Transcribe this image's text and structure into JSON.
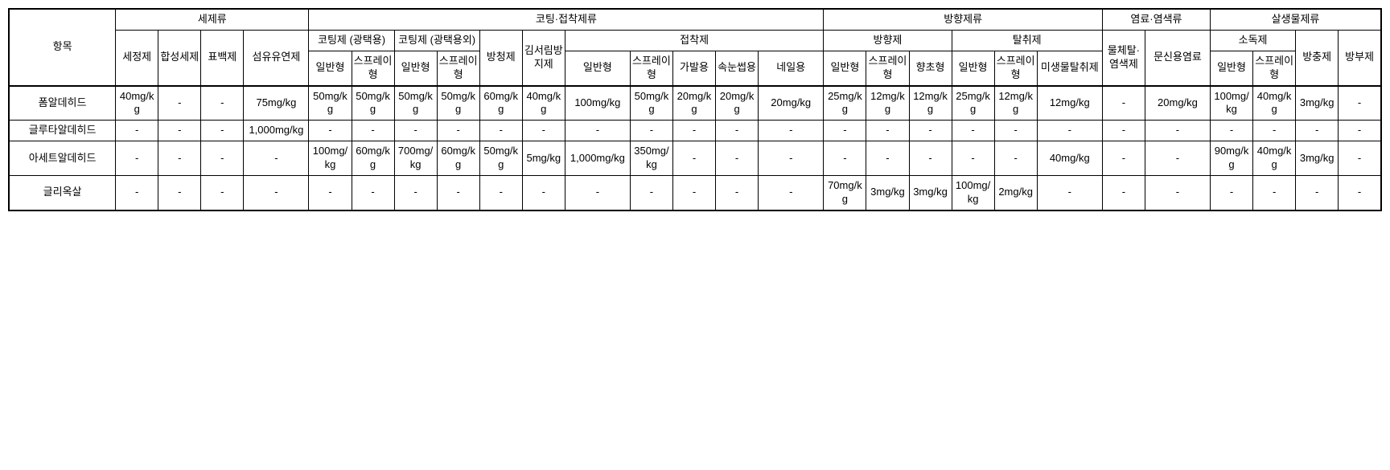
{
  "headers": {
    "item": "항목",
    "g1": "세제류",
    "g2": "코팅·접착제류",
    "g3": "방향제류",
    "g4": "염료·염색류",
    "g5": "살생물제류",
    "s_cleaner": "세정제",
    "s_synth": "합성세제",
    "s_bleach": "표백제",
    "s_softener": "섬유유연제",
    "s_coat_gloss": "코팅제\n(광택용)",
    "s_coat_nongloss": "코팅제\n(광택용외)",
    "s_rust": "방청제",
    "s_antifog": "김서림방지제",
    "s_adhesive": "접착제",
    "s_fragrance": "방향제",
    "s_deodorant": "탈취제",
    "s_dyeremover": "물체탈·염색제",
    "s_tattoo": "문신용염료",
    "s_disinfect": "소독제",
    "s_insecticide": "방충제",
    "s_preservative": "방부제",
    "general": "일반형",
    "spray": "스프레이형",
    "household": "가발용",
    "eyeglass": "속눈썹용",
    "nail": "네일용",
    "candle": "향초형",
    "microbial": "미생물탈취제"
  },
  "rows": [
    {
      "label": "폼알데히드",
      "cells": [
        "40mg/kg",
        "-",
        "-",
        "75mg/kg",
        "50mg/kg",
        "50mg/kg",
        "50mg/kg",
        "50mg/kg",
        "60mg/kg",
        "40mg/kg",
        "100mg/kg",
        "50mg/kg",
        "20mg/kg",
        "20mg/kg",
        "20mg/kg",
        "25mg/kg",
        "12mg/kg",
        "12mg/kg",
        "25mg/kg",
        "12mg/kg",
        "12mg/kg",
        "-",
        "20mg/kg",
        "100mg/kg",
        "40mg/kg",
        "3mg/kg",
        "-"
      ]
    },
    {
      "label": "글루타알데히드",
      "cells": [
        "-",
        "-",
        "-",
        "1,000mg/kg",
        "-",
        "-",
        "-",
        "-",
        "-",
        "-",
        "-",
        "-",
        "-",
        "-",
        "-",
        "-",
        "-",
        "-",
        "-",
        "-",
        "-",
        "-",
        "-",
        "-",
        "-",
        "-",
        "-"
      ]
    },
    {
      "label": "아세트알데히드",
      "cells": [
        "-",
        "-",
        "-",
        "-",
        "100mg/kg",
        "60mg/kg",
        "700mg/kg",
        "60mg/kg",
        "50mg/kg",
        "5mg/kg",
        "1,000mg/kg",
        "350mg/kg",
        "-",
        "-",
        "-",
        "-",
        "-",
        "-",
        "-",
        "-",
        "40mg/kg",
        "-",
        "-",
        "90mg/kg",
        "40mg/kg",
        "3mg/kg",
        "-"
      ]
    },
    {
      "label": "글리옥살",
      "cells": [
        "-",
        "-",
        "-",
        "-",
        "-",
        "-",
        "-",
        "-",
        "-",
        "-",
        "-",
        "-",
        "-",
        "-",
        "-",
        "70mg/kg",
        "3mg/kg",
        "3mg/kg",
        "100mg/kg",
        "2mg/kg",
        "-",
        "-",
        "-",
        "-",
        "-",
        "-",
        "-"
      ]
    }
  ],
  "style": {
    "font_size": 13,
    "border_color": "#000000",
    "outer_border_width": 2,
    "background": "#ffffff"
  }
}
